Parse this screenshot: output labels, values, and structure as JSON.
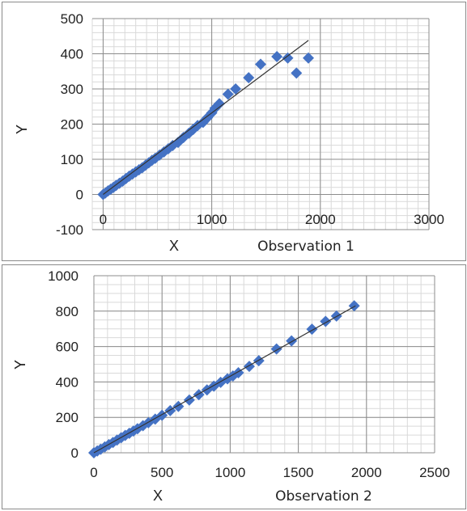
{
  "chart_data": [
    {
      "type": "scatter",
      "title": "Observation 1",
      "xlabel": "X",
      "ylabel": "Y",
      "xlim": [
        -100,
        3000
      ],
      "ylim": [
        -100,
        500
      ],
      "x_ticks": [
        "0",
        "1000",
        "2000",
        "3000"
      ],
      "y_ticks": [
        "-100",
        "0",
        "100",
        "200",
        "300",
        "400",
        "500"
      ],
      "grid": true,
      "series": [
        {
          "marker": "diamond",
          "color": "#4472C4",
          "points": [
            [
              0,
              0
            ],
            [
              20,
              4
            ],
            [
              45,
              10
            ],
            [
              70,
              15
            ],
            [
              95,
              20
            ],
            [
              120,
              26
            ],
            [
              150,
              32
            ],
            [
              180,
              38
            ],
            [
              210,
              45
            ],
            [
              240,
              52
            ],
            [
              270,
              58
            ],
            [
              300,
              64
            ],
            [
              330,
              70
            ],
            [
              360,
              76
            ],
            [
              390,
              83
            ],
            [
              420,
              90
            ],
            [
              450,
              97
            ],
            [
              480,
              103
            ],
            [
              520,
              112
            ],
            [
              560,
              121
            ],
            [
              600,
              130
            ],
            [
              640,
              139
            ],
            [
              690,
              148
            ],
            [
              740,
              162
            ],
            [
              790,
              174
            ],
            [
              830,
              185
            ],
            [
              870,
              196
            ],
            [
              920,
              205
            ],
            [
              960,
              218
            ],
            [
              1000,
              232
            ],
            [
              1030,
              245
            ],
            [
              1070,
              258
            ],
            [
              1150,
              285
            ],
            [
              1220,
              300
            ],
            [
              1340,
              332
            ],
            [
              1450,
              370
            ],
            [
              1600,
              392
            ],
            [
              1700,
              388
            ],
            [
              1780,
              345
            ],
            [
              1890,
              388
            ]
          ]
        }
      ],
      "trendline": {
        "x": [
          0,
          1890
        ],
        "y": [
          0,
          438
        ],
        "color": "#333333"
      }
    },
    {
      "type": "scatter",
      "title": "Observation 2",
      "xlabel": "X",
      "ylabel": "Y",
      "xlim": [
        0,
        2500
      ],
      "ylim": [
        0,
        1000
      ],
      "x_ticks": [
        "0",
        "500",
        "1000",
        "1500",
        "2000",
        "2500"
      ],
      "y_ticks": [
        "0",
        "200",
        "400",
        "600",
        "800",
        "1000"
      ],
      "grid": true,
      "series": [
        {
          "marker": "diamond",
          "color": "#4472C4",
          "points": [
            [
              0,
              0
            ],
            [
              25,
              10
            ],
            [
              50,
              20
            ],
            [
              80,
              33
            ],
            [
              110,
              46
            ],
            [
              140,
              58
            ],
            [
              170,
              72
            ],
            [
              200,
              85
            ],
            [
              230,
              98
            ],
            [
              260,
              110
            ],
            [
              290,
              123
            ],
            [
              320,
              136
            ],
            [
              360,
              153
            ],
            [
              400,
              170
            ],
            [
              450,
              190
            ],
            [
              500,
              212
            ],
            [
              560,
              238
            ],
            [
              620,
              262
            ],
            [
              700,
              298
            ],
            [
              770,
              328
            ],
            [
              830,
              355
            ],
            [
              880,
              376
            ],
            [
              930,
              398
            ],
            [
              980,
              418
            ],
            [
              1020,
              434
            ],
            [
              1060,
              452
            ],
            [
              1140,
              488
            ],
            [
              1210,
              520
            ],
            [
              1340,
              586
            ],
            [
              1450,
              632
            ],
            [
              1600,
              698
            ],
            [
              1700,
              742
            ],
            [
              1780,
              772
            ],
            [
              1910,
              830
            ]
          ]
        }
      ],
      "trendline": {
        "x": [
          0,
          1920
        ],
        "y": [
          0,
          830
        ],
        "color": "#333333"
      }
    }
  ]
}
